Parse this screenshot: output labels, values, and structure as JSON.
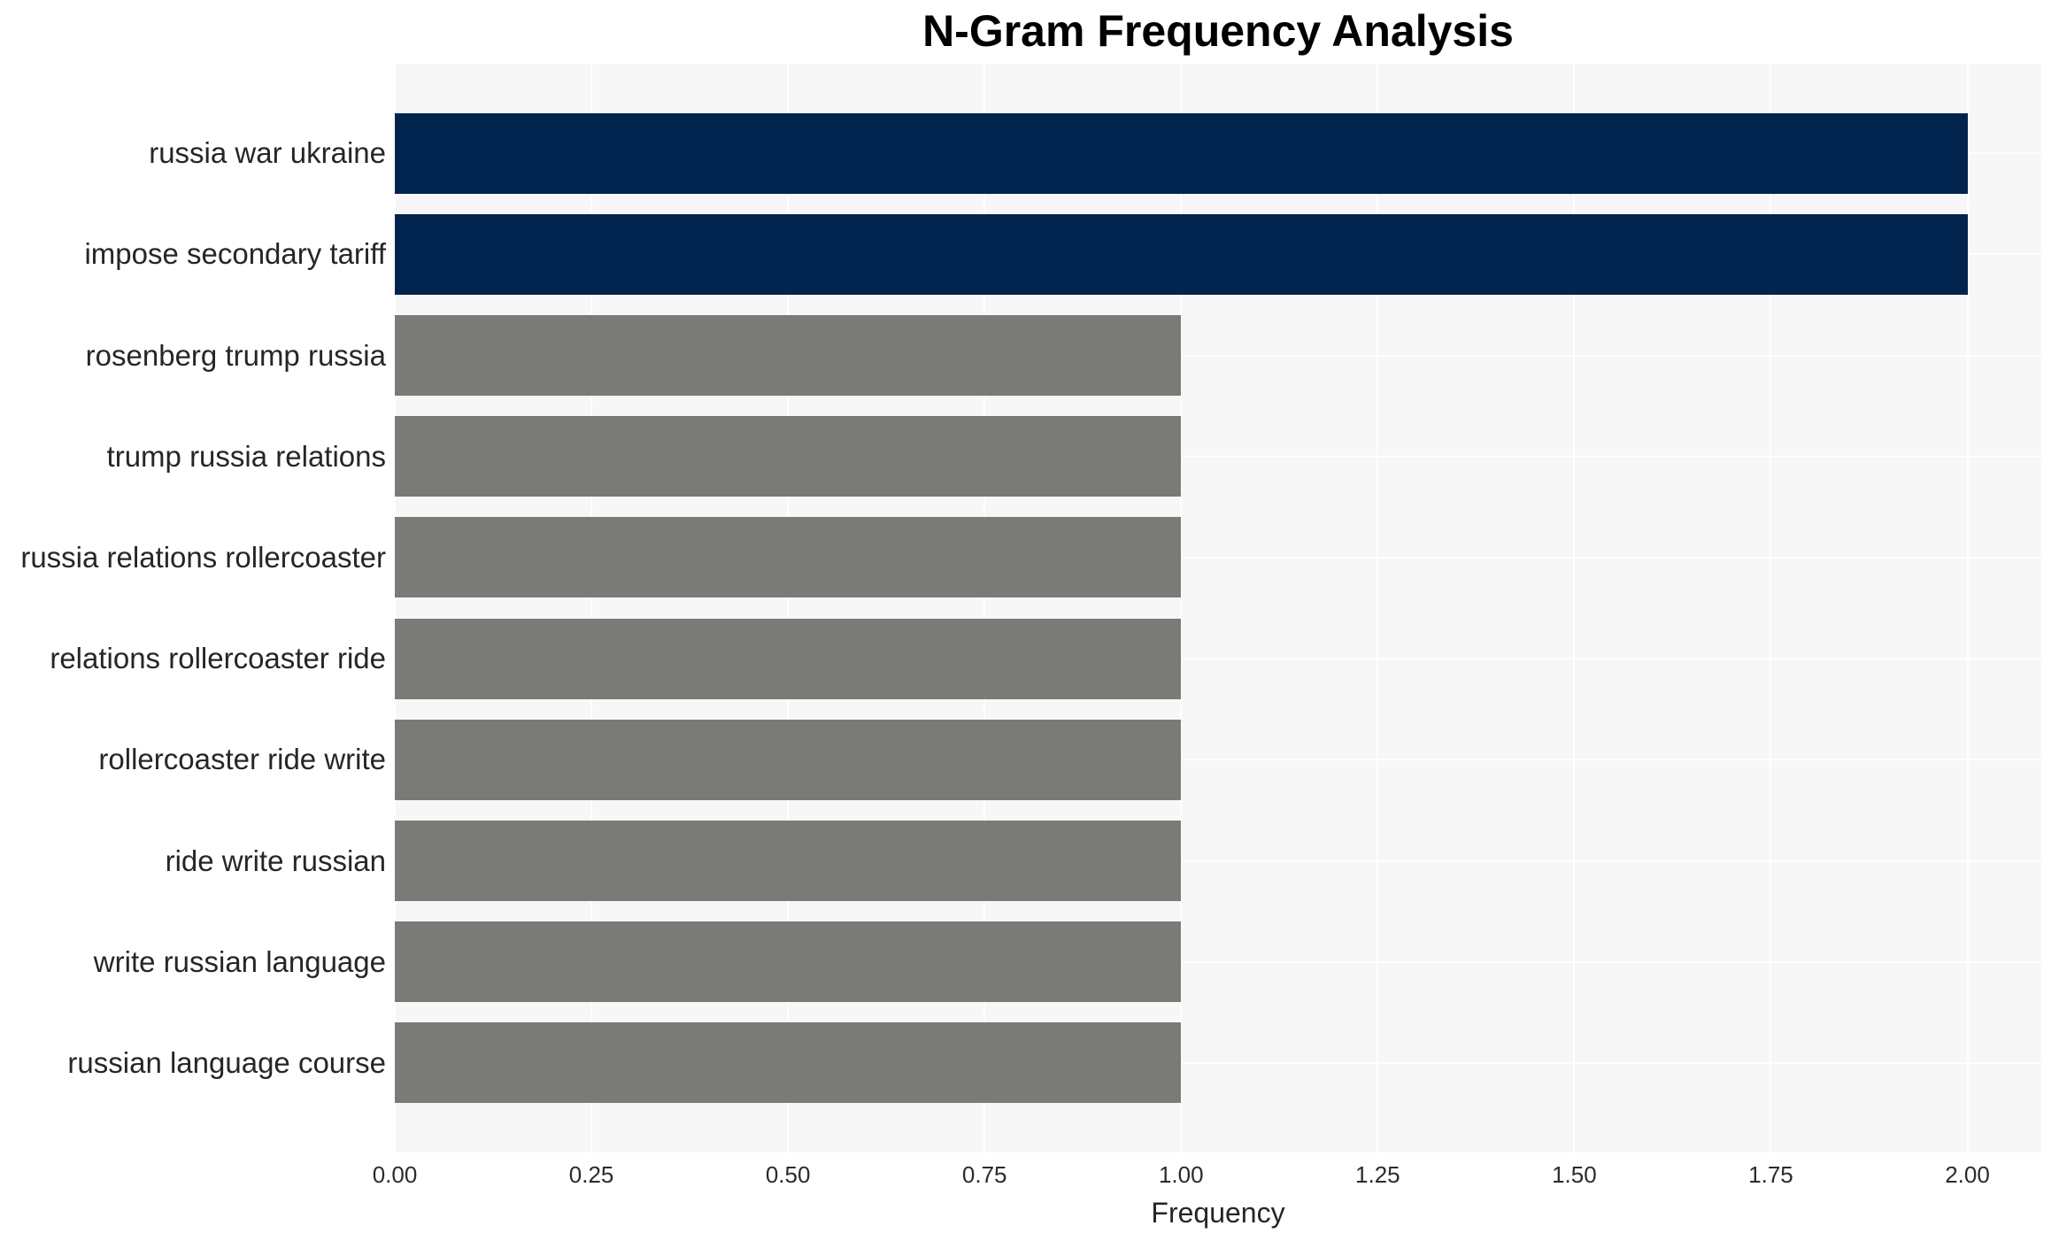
{
  "chart_data": {
    "type": "bar",
    "orientation": "horizontal",
    "title": "N-Gram Frequency Analysis",
    "xlabel": "Frequency",
    "ylabel": "",
    "xlim": [
      0,
      2.094
    ],
    "grid": true,
    "legend": false,
    "categories": [
      "russia war ukraine",
      "impose secondary tariff",
      "rosenberg trump russia",
      "trump russia relations",
      "russia relations rollercoaster",
      "relations rollercoaster ride",
      "rollercoaster ride write",
      "ride write russian",
      "write russian language",
      "russian language course"
    ],
    "values": [
      2,
      2,
      1,
      1,
      1,
      1,
      1,
      1,
      1,
      1
    ],
    "items": [
      {
        "label": "russia war ukraine",
        "value": 2,
        "color": "#01244e"
      },
      {
        "label": "impose secondary tariff",
        "value": 2,
        "color": "#01244e"
      },
      {
        "label": "rosenberg trump russia",
        "value": 1,
        "color": "#7a7a77"
      },
      {
        "label": "trump russia relations",
        "value": 1,
        "color": "#7a7a77"
      },
      {
        "label": "russia relations rollercoaster",
        "value": 1,
        "color": "#7a7a77"
      },
      {
        "label": "relations rollercoaster ride",
        "value": 1,
        "color": "#7a7a77"
      },
      {
        "label": "rollercoaster ride write",
        "value": 1,
        "color": "#7a7a77"
      },
      {
        "label": "ride write russian",
        "value": 1,
        "color": "#7a7a77"
      },
      {
        "label": "write russian language",
        "value": 1,
        "color": "#7a7a77"
      },
      {
        "label": "russian language course",
        "value": 1,
        "color": "#7a7a77"
      }
    ],
    "x_ticks": [
      {
        "value": 0.0,
        "label": "0.00"
      },
      {
        "value": 0.25,
        "label": "0.25"
      },
      {
        "value": 0.5,
        "label": "0.50"
      },
      {
        "value": 0.75,
        "label": "0.75"
      },
      {
        "value": 1.0,
        "label": "1.00"
      },
      {
        "value": 1.25,
        "label": "1.25"
      },
      {
        "value": 1.5,
        "label": "1.50"
      },
      {
        "value": 1.75,
        "label": "1.75"
      },
      {
        "value": 2.0,
        "label": "2.00"
      }
    ],
    "colors": {
      "highlight": "#01244e",
      "default": "#7a7a77",
      "plot_background": "#f7f7f7",
      "gridline": "#ffffff",
      "text": "#262626",
      "title_text": "#000000"
    }
  }
}
